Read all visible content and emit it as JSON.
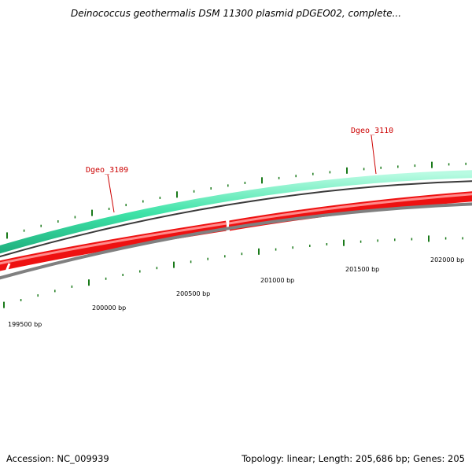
{
  "title": "Deinococcus geothermalis DSM 11300 plasmid pDGEO02, complete...",
  "footer": {
    "accession": "Accession: NC_009939",
    "summary": "Topology: linear; Length: 205,686 bp; Genes: 205"
  },
  "genes": [
    {
      "name": "Dgeo_3109"
    },
    {
      "name": "Dgeo_3110"
    }
  ],
  "ruler_labels": [
    "199500 bp",
    "200000 bp",
    "200500 bp",
    "201000 bp",
    "201500 bp",
    "202000 bp"
  ],
  "colors": {
    "forward_track": "#3fe3a8",
    "reverse_track": "#ee1111",
    "backbone": "#808080",
    "ticks": "#1a7a1a",
    "gene_label": "#cc0000"
  }
}
